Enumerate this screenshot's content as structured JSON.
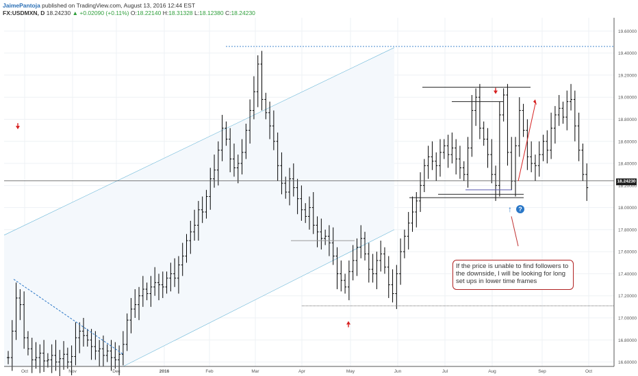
{
  "header": {
    "author": "JaimePantoja",
    "published": " published on TradingView.com, August 13, 2016 12:44 EST",
    "symbol": "FX:USDMXN, D",
    "last": "18.24230",
    "change": "▲ +0.02090 (+0.11%)",
    "o_label": "O:",
    "o_val": "18.22140",
    "h_label": "H:",
    "h_val": "18.31328",
    "l_label": "L:",
    "l_val": "18.12380",
    "c_label": "C:",
    "c_val": "18.24230"
  },
  "colors": {
    "bull": "#000000",
    "blue_dash": "#2a77c7",
    "red": "#d62020",
    "channel": "#6ab7d8",
    "hline": "#333333"
  },
  "current_price_badge": "18.24230",
  "note": {
    "text": "If the price is unable to find followers to the downside, I will be looking for long set ups in lower time frames"
  },
  "chart_data": {
    "type": "ohlc",
    "x_labels": [
      "Oct",
      "Nov",
      "Dec",
      "2016",
      "Feb",
      "Mar",
      "Apr",
      "May",
      "Jun",
      "Jul",
      "Aug",
      "Sep",
      "Oct"
    ],
    "y_ticks": [
      "19.60000",
      "19.40000",
      "19.20000",
      "19.00000",
      "18.80000",
      "18.60000",
      "18.40000",
      "18.20000",
      "18.00000",
      "17.80000",
      "17.60000",
      "17.40000",
      "17.20000",
      "17.00000",
      "16.80000",
      "16.60000"
    ],
    "ylim": [
      16.56,
      19.72
    ],
    "grid": true,
    "levels": [
      {
        "name": "top-dotted",
        "value": 19.46,
        "style": "dotted-blue"
      },
      {
        "name": "current-price",
        "value": 18.2423,
        "style": "solid-gray"
      },
      {
        "name": "support-dotted",
        "value": 17.11,
        "style": "dotted-black"
      }
    ],
    "closes": [
      16.64,
      16.88,
      17.18,
      17.12,
      16.82,
      16.72,
      16.62,
      16.64,
      16.68,
      16.61,
      16.62,
      16.66,
      16.6,
      16.63,
      16.67,
      16.6,
      16.65,
      16.82,
      16.88,
      16.84,
      16.8,
      16.74,
      16.7,
      16.72,
      16.66,
      16.7,
      16.64,
      16.62,
      16.67,
      16.76,
      16.98,
      17.08,
      17.12,
      17.2,
      17.26,
      17.22,
      17.28,
      17.32,
      17.3,
      17.28,
      17.36,
      17.4,
      17.36,
      17.48,
      17.56,
      17.7,
      17.78,
      17.84,
      17.98,
      17.96,
      18.1,
      18.26,
      18.34,
      18.52,
      18.72,
      18.62,
      18.44,
      18.36,
      18.4,
      18.5,
      18.7,
      18.88,
      19.05,
      19.3,
      18.98,
      18.86,
      18.74,
      18.6,
      18.38,
      18.22,
      18.14,
      18.26,
      18.18,
      18.08,
      17.98,
      17.92,
      18.0,
      17.84,
      17.78,
      17.72,
      17.74,
      17.68,
      17.56,
      17.4,
      17.34,
      17.28,
      17.42,
      17.52,
      17.64,
      17.72,
      17.58,
      17.44,
      17.4,
      17.52,
      17.58,
      17.46,
      17.3,
      17.22,
      17.4,
      17.6,
      17.74,
      17.86,
      17.96,
      18.06,
      18.2,
      18.38,
      18.46,
      18.42,
      18.38,
      18.5,
      18.56,
      18.48,
      18.54,
      18.44,
      18.36,
      18.3,
      18.54,
      18.88,
      19.0,
      18.72,
      18.62,
      18.48,
      18.3,
      18.2,
      18.84,
      19.02,
      18.5,
      18.24,
      18.56,
      18.88,
      18.7,
      18.46,
      18.4,
      18.38,
      18.48,
      18.6,
      18.52,
      18.72,
      18.84,
      18.9,
      18.82,
      18.96,
      18.98,
      18.74,
      18.52,
      18.3,
      18.18
    ]
  }
}
